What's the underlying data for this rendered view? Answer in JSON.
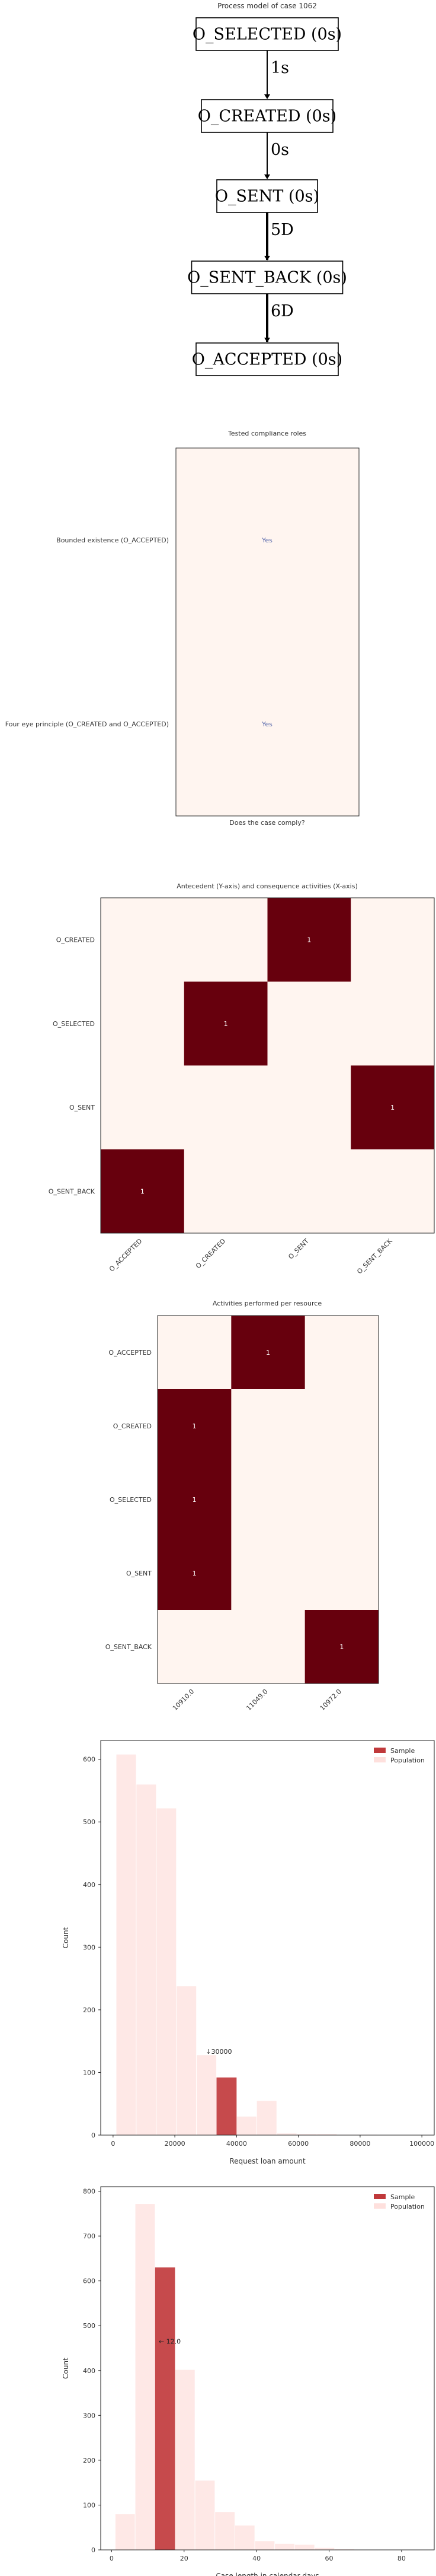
{
  "process_model": {
    "title": "Process model of case 1062",
    "nodes": [
      "O_SELECTED (0s)",
      "O_CREATED (0s)",
      "O_SENT (0s)",
      "O_SENT_BACK (0s)",
      "O_ACCEPTED (0s)"
    ],
    "edges": [
      "1s",
      "0s",
      "5D",
      "6D"
    ]
  },
  "compliance": {
    "title": "Tested compliance roles",
    "rows": [
      "Bounded existence (O_ACCEPTED)",
      "Four eye principle (O_CREATED and O_ACCEPTED)"
    ],
    "values": [
      "Yes",
      "Yes"
    ],
    "xlabel": "Does the case comply?"
  },
  "antecedent": {
    "title": "Antecedent (Y-axis) and consequence activities (X-axis)",
    "rows": [
      "O_CREATED",
      "O_SELECTED",
      "O_SENT",
      "O_SENT_BACK"
    ],
    "cols": [
      "O_ACCEPTED",
      "O_CREATED",
      "O_SENT",
      "O_SENT_BACK"
    ],
    "cells": [
      {
        "row": 0,
        "col": 2,
        "value": "1"
      },
      {
        "row": 1,
        "col": 1,
        "value": "1"
      },
      {
        "row": 2,
        "col": 3,
        "value": "1"
      },
      {
        "row": 3,
        "col": 0,
        "value": "1"
      }
    ]
  },
  "resources": {
    "title": "Activities performed per resource",
    "rows": [
      "O_ACCEPTED",
      "O_CREATED",
      "O_SELECTED",
      "O_SENT",
      "O_SENT_BACK"
    ],
    "cols": [
      "10910.0",
      "11049.0",
      "10972.0"
    ],
    "cells": [
      {
        "row": 0,
        "col": 1,
        "value": "1"
      },
      {
        "row": 1,
        "col": 0,
        "value": "1"
      },
      {
        "row": 2,
        "col": 0,
        "value": "1"
      },
      {
        "row": 3,
        "col": 0,
        "value": "1"
      },
      {
        "row": 4,
        "col": 2,
        "value": "1"
      }
    ]
  },
  "colors": {
    "heat_high": "#67000d",
    "heat_low": "#fff5f0",
    "sample": "#c0393b",
    "population": "#fee0dd"
  },
  "chart_data": [
    {
      "type": "bar",
      "xlabel": "Request loan amount",
      "ylabel": "Count",
      "xlim": [
        -4000,
        104000
      ],
      "ylim": [
        0,
        630
      ],
      "xticks": [
        0,
        20000,
        40000,
        60000,
        80000,
        100000
      ],
      "yticks": [
        0,
        100,
        200,
        300,
        400,
        500,
        600
      ],
      "legend": "top-right",
      "bin_width": 6500,
      "series": [
        {
          "name": "Sample",
          "bins": [
            {
              "x0": 33500,
              "value": 92
            }
          ]
        },
        {
          "name": "Population",
          "bins": [
            {
              "x0": 1000,
              "value": 608
            },
            {
              "x0": 7500,
              "value": 560
            },
            {
              "x0": 14000,
              "value": 522
            },
            {
              "x0": 20500,
              "value": 238
            },
            {
              "x0": 27000,
              "value": 128
            },
            {
              "x0": 33500,
              "value": 92
            },
            {
              "x0": 40000,
              "value": 30
            },
            {
              "x0": 46500,
              "value": 55
            },
            {
              "x0": 53000,
              "value": 3
            },
            {
              "x0": 59500,
              "value": 2
            },
            {
              "x0": 66000,
              "value": 2
            },
            {
              "x0": 72500,
              "value": 1
            },
            {
              "x0": 79000,
              "value": 1
            }
          ]
        }
      ],
      "annotation": {
        "text": "↓30000",
        "x": 30000,
        "y": 130
      }
    },
    {
      "type": "bar",
      "xlabel": "Case length in calendar days",
      "ylabel": "Count",
      "xlim": [
        -3,
        89
      ],
      "ylim": [
        0,
        810
      ],
      "xticks": [
        0,
        20,
        40,
        60,
        80
      ],
      "yticks": [
        0,
        100,
        200,
        300,
        400,
        500,
        600,
        700,
        800
      ],
      "legend": "top-right",
      "bin_width": 5.5,
      "series": [
        {
          "name": "Sample",
          "bins": [
            {
              "x0": 12,
              "value": 630
            }
          ]
        },
        {
          "name": "Population",
          "bins": [
            {
              "x0": 1,
              "value": 80
            },
            {
              "x0": 6.5,
              "value": 772
            },
            {
              "x0": 12,
              "value": 630
            },
            {
              "x0": 17.5,
              "value": 402
            },
            {
              "x0": 23,
              "value": 155
            },
            {
              "x0": 28.5,
              "value": 85
            },
            {
              "x0": 34,
              "value": 55
            },
            {
              "x0": 39.5,
              "value": 20
            },
            {
              "x0": 45,
              "value": 14
            },
            {
              "x0": 50.5,
              "value": 12
            },
            {
              "x0": 56,
              "value": 5
            },
            {
              "x0": 61.5,
              "value": 2
            }
          ]
        }
      ],
      "annotation": {
        "text": "← 12.0",
        "x": 13,
        "y": 460
      }
    }
  ]
}
